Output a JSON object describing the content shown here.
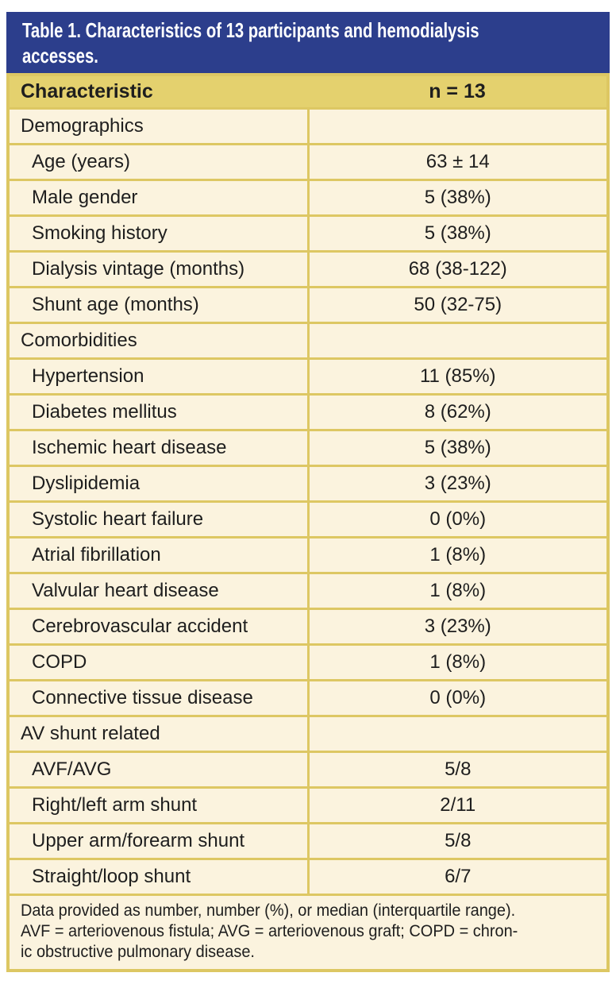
{
  "figure": {
    "title_full": "Table 1. Characteristics of 13 participants and hemodialysis accesses.",
    "title_line1": "Table 1. Characteristics of 13 participants and hemodialysis",
    "title_line2": "accesses."
  },
  "columns": {
    "characteristic": "Characteristic",
    "n": "n = 13"
  },
  "table": {
    "rows": [
      {
        "type": "section",
        "label": "Demographics",
        "value": ""
      },
      {
        "type": "item",
        "label": "Age (years)",
        "value": "63 ± 14"
      },
      {
        "type": "item",
        "label": "Male gender",
        "value": "5 (38%)"
      },
      {
        "type": "item",
        "label": "Smoking history",
        "value": "5 (38%)"
      },
      {
        "type": "item",
        "label": "Dialysis vintage (months)",
        "value": "68 (38-122)"
      },
      {
        "type": "item",
        "label": "Shunt age (months)",
        "value": "50 (32-75)"
      },
      {
        "type": "section",
        "label": "Comorbidities",
        "value": ""
      },
      {
        "type": "item",
        "label": "Hypertension",
        "value": "11 (85%)"
      },
      {
        "type": "item",
        "label": "Diabetes mellitus",
        "value": "8 (62%)"
      },
      {
        "type": "item",
        "label": "Ischemic heart disease",
        "value": "5 (38%)"
      },
      {
        "type": "item",
        "label": "Dyslipidemia",
        "value": "3 (23%)"
      },
      {
        "type": "item",
        "label": "Systolic heart failure",
        "value": "0 (0%)"
      },
      {
        "type": "item",
        "label": "Atrial fibrillation",
        "value": "1 (8%)"
      },
      {
        "type": "item",
        "label": "Valvular heart disease",
        "value": "1 (8%)"
      },
      {
        "type": "item",
        "label": "Cerebrovascular accident",
        "value": "3 (23%)"
      },
      {
        "type": "item",
        "label": "COPD",
        "value": "1 (8%)"
      },
      {
        "type": "item",
        "label": "Connective tissue disease",
        "value": "0 (0%)"
      },
      {
        "type": "section",
        "label": "AV shunt related",
        "value": ""
      },
      {
        "type": "item",
        "label": "AVF/AVG",
        "value": "5/8"
      },
      {
        "type": "item",
        "label": "Right/left arm shunt",
        "value": "2/11"
      },
      {
        "type": "item",
        "label": "Upper arm/forearm shunt",
        "value": "5/8"
      },
      {
        "type": "item",
        "label": "Straight/loop shunt",
        "value": "6/7"
      }
    ]
  },
  "footnote": {
    "full": "Data provided as number, number (%), or median (interquartile range). AVF = arteriovenous fistula; AVG = arteriovenous graft; COPD = chronic obstructive pulmonary disease.",
    "lines": [
      "Data provided as number, number (%), or median (interquartile range).",
      "AVF = arteriovenous fistula; AVG = arteriovenous graft; COPD = chron-",
      "ic obstructive pulmonary disease."
    ]
  },
  "colors": {
    "header_bar": "#2C3E8C",
    "column_header_bg": "#E4D16E",
    "row_bg": "#FBF3DE",
    "border": "#DDC763",
    "text": "#1E1E1E",
    "title_text": "#FFFFFF"
  }
}
